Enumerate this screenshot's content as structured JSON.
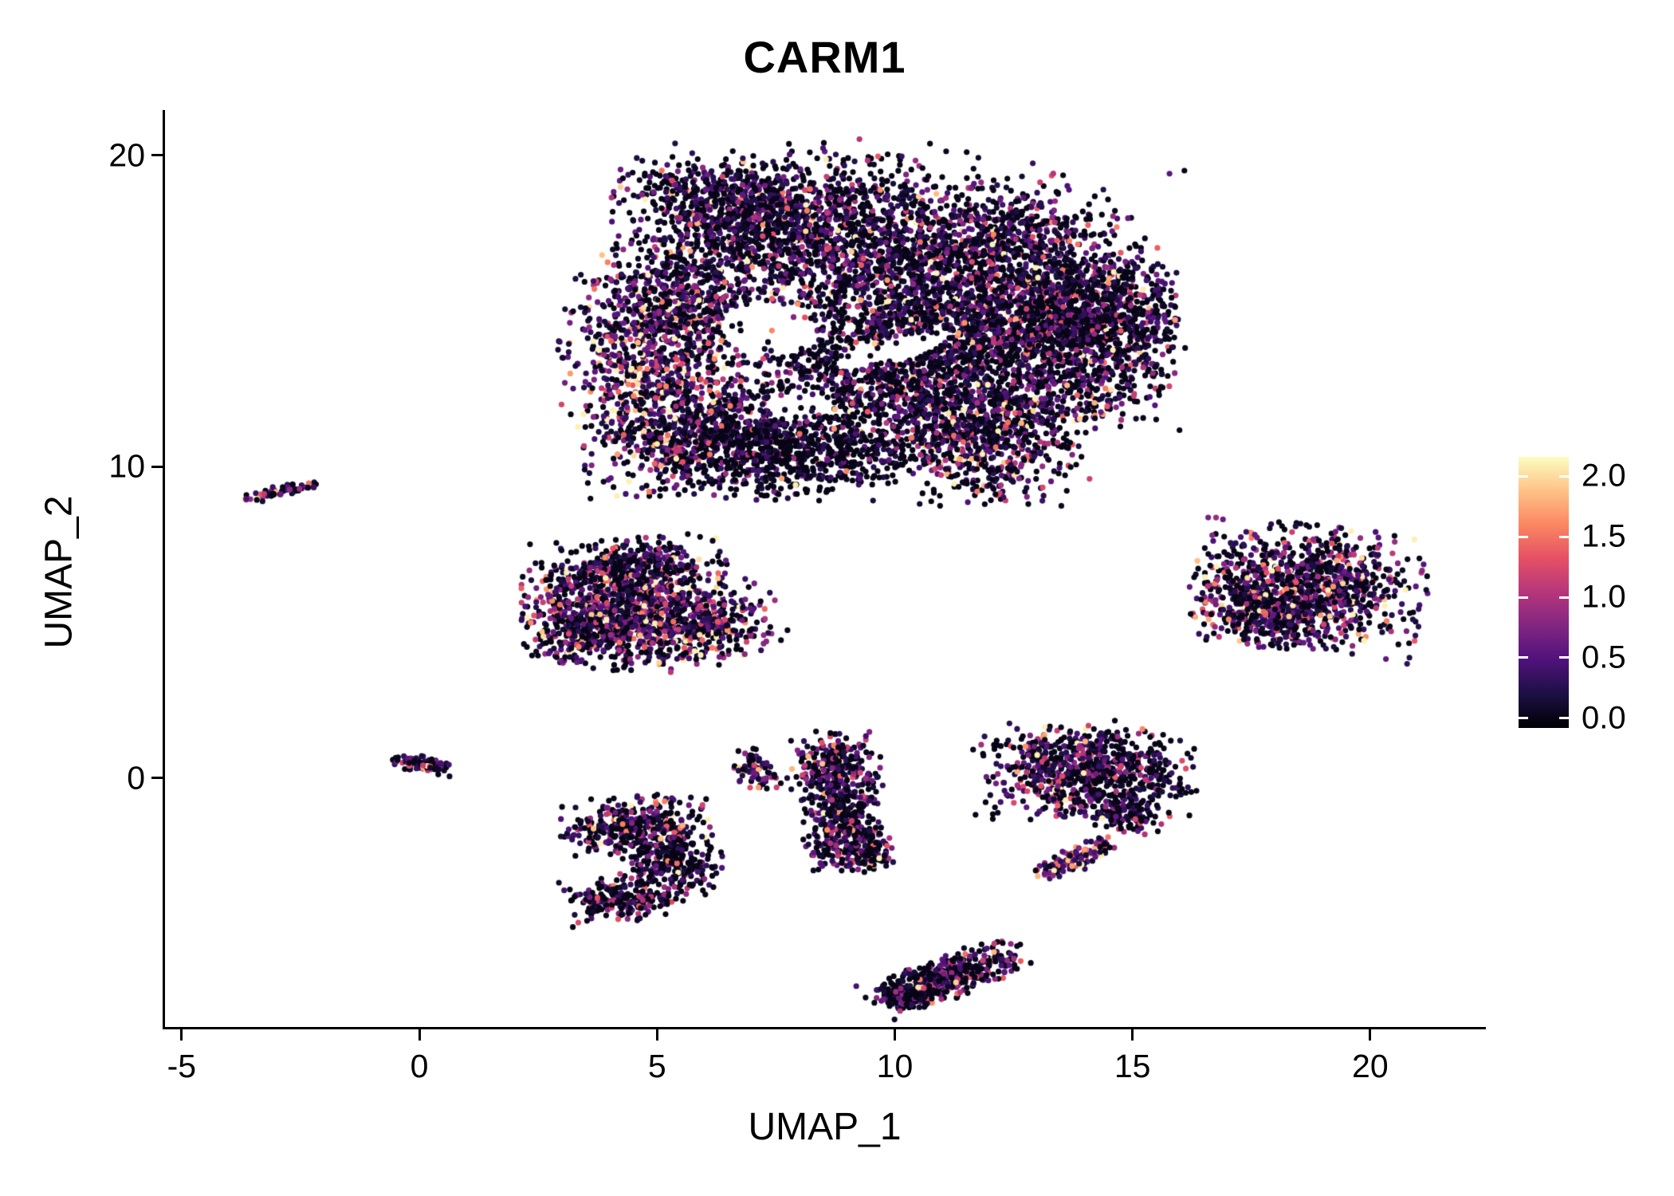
{
  "title": "CARM1",
  "axes": {
    "x": {
      "label": "UMAP_1",
      "tick_values": [
        -5,
        0,
        5,
        10,
        15,
        20
      ],
      "tick_labels": [
        "-5",
        "0",
        "5",
        "10",
        "15",
        "20"
      ]
    },
    "y": {
      "label": "UMAP_2",
      "tick_values": [
        0,
        10,
        20
      ],
      "tick_labels": [
        "0",
        "10",
        "20"
      ]
    }
  },
  "colorbar": {
    "tick_values": [
      0.0,
      0.5,
      1.0,
      1.5,
      2.0
    ],
    "tick_labels": [
      "0.0",
      "0.5",
      "1.0",
      "1.5",
      "2.0"
    ],
    "domain": [
      -0.08,
      2.16
    ],
    "stops": [
      "#000004",
      "#1c1044",
      "#4f127b",
      "#812581",
      "#b5367a",
      "#e55064",
      "#fb8761",
      "#fec287",
      "#fcfdbf"
    ]
  },
  "chart_data": {
    "type": "scatter",
    "title": "CARM1",
    "xlabel": "UMAP_1",
    "ylabel": "UMAP_2",
    "xlim": [
      -5.35,
      22.4
    ],
    "ylim": [
      -8.0,
      21.4
    ],
    "grid": false,
    "legend_position": "right",
    "legend_type": "colorbar",
    "value_range": [
      0.0,
      2.1
    ],
    "point_radius": 3.6,
    "seed": 42,
    "color_scale": {
      "name": "magma",
      "domain": [
        -0.08,
        2.16
      ],
      "stops": [
        "#000004",
        "#1c1044",
        "#4f127b",
        "#812581",
        "#b5367a",
        "#e55064",
        "#fb8761",
        "#fec287",
        "#fcfdbf"
      ]
    },
    "clusters": [
      {
        "name": "main-top-core",
        "n": 1400,
        "cx": 8.6,
        "cy": 17.6,
        "sx": 2.1,
        "sy": 1.15,
        "rot": 0,
        "p0": 0.38,
        "scale": 0.55
      },
      {
        "name": "main-top-left",
        "n": 500,
        "cx": 6.6,
        "cy": 18.3,
        "sx": 1.2,
        "sy": 0.75,
        "rot": -15,
        "p0": 0.38,
        "scale": 0.55
      },
      {
        "name": "main-mid-right",
        "n": 1700,
        "cx": 11.4,
        "cy": 14.9,
        "sx": 1.9,
        "sy": 1.5,
        "rot": 0,
        "p0": 0.4,
        "scale": 0.55
      },
      {
        "name": "main-right-lobe",
        "n": 900,
        "cx": 13.8,
        "cy": 13.9,
        "sx": 1.05,
        "sy": 1.3,
        "rot": 0,
        "p0": 0.42,
        "scale": 0.5
      },
      {
        "name": "main-center-low",
        "n": 900,
        "cx": 9.6,
        "cy": 12.6,
        "sx": 1.7,
        "sy": 1.2,
        "rot": 0,
        "p0": 0.45,
        "scale": 0.5
      },
      {
        "name": "main-left-hot-lobe",
        "n": 800,
        "cx": 4.9,
        "cy": 12.9,
        "sx": 0.85,
        "sy": 1.7,
        "rot": 8,
        "p0": 0.15,
        "scale": 0.85
      },
      {
        "name": "main-left-upper",
        "n": 450,
        "cx": 5.6,
        "cy": 15.3,
        "sx": 0.9,
        "sy": 0.9,
        "rot": 0,
        "p0": 0.35,
        "scale": 0.6
      },
      {
        "name": "main-bottom-left-dark",
        "n": 550,
        "cx": 6.3,
        "cy": 10.9,
        "sx": 1.1,
        "sy": 0.8,
        "rot": 10,
        "p0": 0.5,
        "scale": 0.45
      },
      {
        "name": "main-bottom-dark",
        "n": 500,
        "cx": 8.2,
        "cy": 10.4,
        "sx": 1.3,
        "sy": 0.7,
        "rot": 0,
        "p0": 0.62,
        "scale": 0.35
      },
      {
        "name": "main-bottom-right-dense",
        "n": 650,
        "cx": 11.9,
        "cy": 10.9,
        "sx": 1.0,
        "sy": 1.0,
        "rot": 0,
        "p0": 0.38,
        "scale": 0.6
      },
      {
        "name": "main-far-right",
        "n": 420,
        "cx": 14.2,
        "cy": 15.2,
        "sx": 0.8,
        "sy": 0.9,
        "rot": 0,
        "p0": 0.4,
        "scale": 0.55
      },
      {
        "name": "main-top-right",
        "n": 350,
        "cx": 12.6,
        "cy": 17.3,
        "sx": 1.1,
        "sy": 0.8,
        "rot": 20,
        "p0": 0.4,
        "scale": 0.5
      },
      {
        "name": "main-haze",
        "n": 500,
        "cx": 9.5,
        "cy": 14.8,
        "sx": 3.0,
        "sy": 2.6,
        "rot": 0,
        "p0": 0.5,
        "scale": 0.5
      },
      {
        "name": "midleft-core",
        "n": 850,
        "cx": 4.3,
        "cy": 5.9,
        "sx": 1.0,
        "sy": 0.85,
        "rot": 0,
        "p0": 0.3,
        "scale": 0.65
      },
      {
        "name": "midleft-lower",
        "n": 500,
        "cx": 5.6,
        "cy": 4.8,
        "sx": 0.95,
        "sy": 0.6,
        "rot": 15,
        "p0": 0.28,
        "scale": 0.7
      },
      {
        "name": "midleft-west",
        "n": 230,
        "cx": 3.4,
        "cy": 4.6,
        "sx": 0.55,
        "sy": 0.5,
        "rot": 0,
        "p0": 0.3,
        "scale": 0.6
      },
      {
        "name": "midleft-top-sparse",
        "n": 120,
        "cx": 4.9,
        "cy": 7.0,
        "sx": 0.7,
        "sy": 0.4,
        "rot": 0,
        "p0": 0.45,
        "scale": 0.5
      },
      {
        "name": "right-island-core",
        "n": 1000,
        "cx": 18.7,
        "cy": 6.1,
        "sx": 1.15,
        "sy": 0.95,
        "rot": -10,
        "p0": 0.32,
        "scale": 0.65
      },
      {
        "name": "right-island-west",
        "n": 250,
        "cx": 17.6,
        "cy": 5.4,
        "sx": 0.6,
        "sy": 0.6,
        "rot": 0,
        "p0": 0.3,
        "scale": 0.7
      },
      {
        "name": "tiny-streak-northwest",
        "n": 70,
        "cx": -2.9,
        "cy": 9.2,
        "sx": 0.38,
        "sy": 0.09,
        "rot": 18,
        "p0": 0.3,
        "scale": 0.6
      },
      {
        "name": "tiny-streak-origin",
        "n": 90,
        "cx": 0.1,
        "cy": 0.45,
        "sx": 0.33,
        "sy": 0.13,
        "rot": -12,
        "p0": 0.4,
        "scale": 0.55
      },
      {
        "name": "southwest-upper",
        "n": 330,
        "cx": 4.5,
        "cy": -1.55,
        "sx": 0.75,
        "sy": 0.45,
        "rot": 5,
        "p0": 0.4,
        "scale": 0.6
      },
      {
        "name": "southwest-mid",
        "n": 240,
        "cx": 5.3,
        "cy": -2.8,
        "sx": 0.5,
        "sy": 0.55,
        "rot": 0,
        "p0": 0.5,
        "scale": 0.5
      },
      {
        "name": "southwest-lower",
        "n": 200,
        "cx": 4.2,
        "cy": -3.9,
        "sx": 0.55,
        "sy": 0.35,
        "rot": 10,
        "p0": 0.45,
        "scale": 0.55
      },
      {
        "name": "tiny-arc-center",
        "n": 70,
        "cx": 7.1,
        "cy": 0.2,
        "sx": 0.22,
        "sy": 0.35,
        "rot": 30,
        "p0": 0.4,
        "scale": 0.55
      },
      {
        "name": "center-column-top",
        "n": 280,
        "cx": 8.75,
        "cy": 0.3,
        "sx": 0.45,
        "sy": 0.55,
        "rot": 0,
        "p0": 0.35,
        "scale": 0.6
      },
      {
        "name": "center-column-mid",
        "n": 330,
        "cx": 8.9,
        "cy": -1.4,
        "sx": 0.4,
        "sy": 0.75,
        "rot": 0,
        "p0": 0.38,
        "scale": 0.6
      },
      {
        "name": "center-column-tail",
        "n": 120,
        "cx": 9.35,
        "cy": -2.4,
        "sx": 0.3,
        "sy": 0.3,
        "rot": 0,
        "p0": 0.4,
        "scale": 0.55
      },
      {
        "name": "southeast-core-left",
        "n": 450,
        "cx": 13.5,
        "cy": 0.3,
        "sx": 0.85,
        "sy": 0.75,
        "rot": 0,
        "p0": 0.3,
        "scale": 0.65
      },
      {
        "name": "southeast-core-right-dark",
        "n": 400,
        "cx": 14.7,
        "cy": 0.1,
        "sx": 0.75,
        "sy": 0.65,
        "rot": 0,
        "p0": 0.55,
        "scale": 0.45
      },
      {
        "name": "southeast-drip",
        "n": 90,
        "cx": 14.9,
        "cy": -1.2,
        "sx": 0.35,
        "sy": 0.3,
        "rot": 0,
        "p0": 0.5,
        "scale": 0.5
      },
      {
        "name": "southeast-hot-arc",
        "n": 130,
        "cx": 13.8,
        "cy": -2.6,
        "sx": 0.5,
        "sy": 0.18,
        "rot": 40,
        "p0": 0.12,
        "scale": 0.85
      },
      {
        "name": "bottom-diagonal",
        "n": 420,
        "cx": 11.1,
        "cy": -6.4,
        "sx": 0.85,
        "sy": 0.32,
        "rot": 28,
        "p0": 0.42,
        "scale": 0.55
      },
      {
        "name": "bottom-diagonal-tip",
        "n": 90,
        "cx": 10.35,
        "cy": -7.0,
        "sx": 0.3,
        "sy": 0.2,
        "rot": 20,
        "p0": 0.5,
        "scale": 0.5
      }
    ],
    "holes": [
      {
        "cx": 7.35,
        "cy": 14.4,
        "rx": 1.05,
        "ry": 0.75,
        "rot": -25
      },
      {
        "cx": 9.9,
        "cy": 13.7,
        "rx": 1.25,
        "ry": 0.4,
        "rot": 22
      },
      {
        "cx": 8.0,
        "cy": 11.9,
        "rx": 0.7,
        "ry": 0.45,
        "rot": 0
      }
    ]
  }
}
